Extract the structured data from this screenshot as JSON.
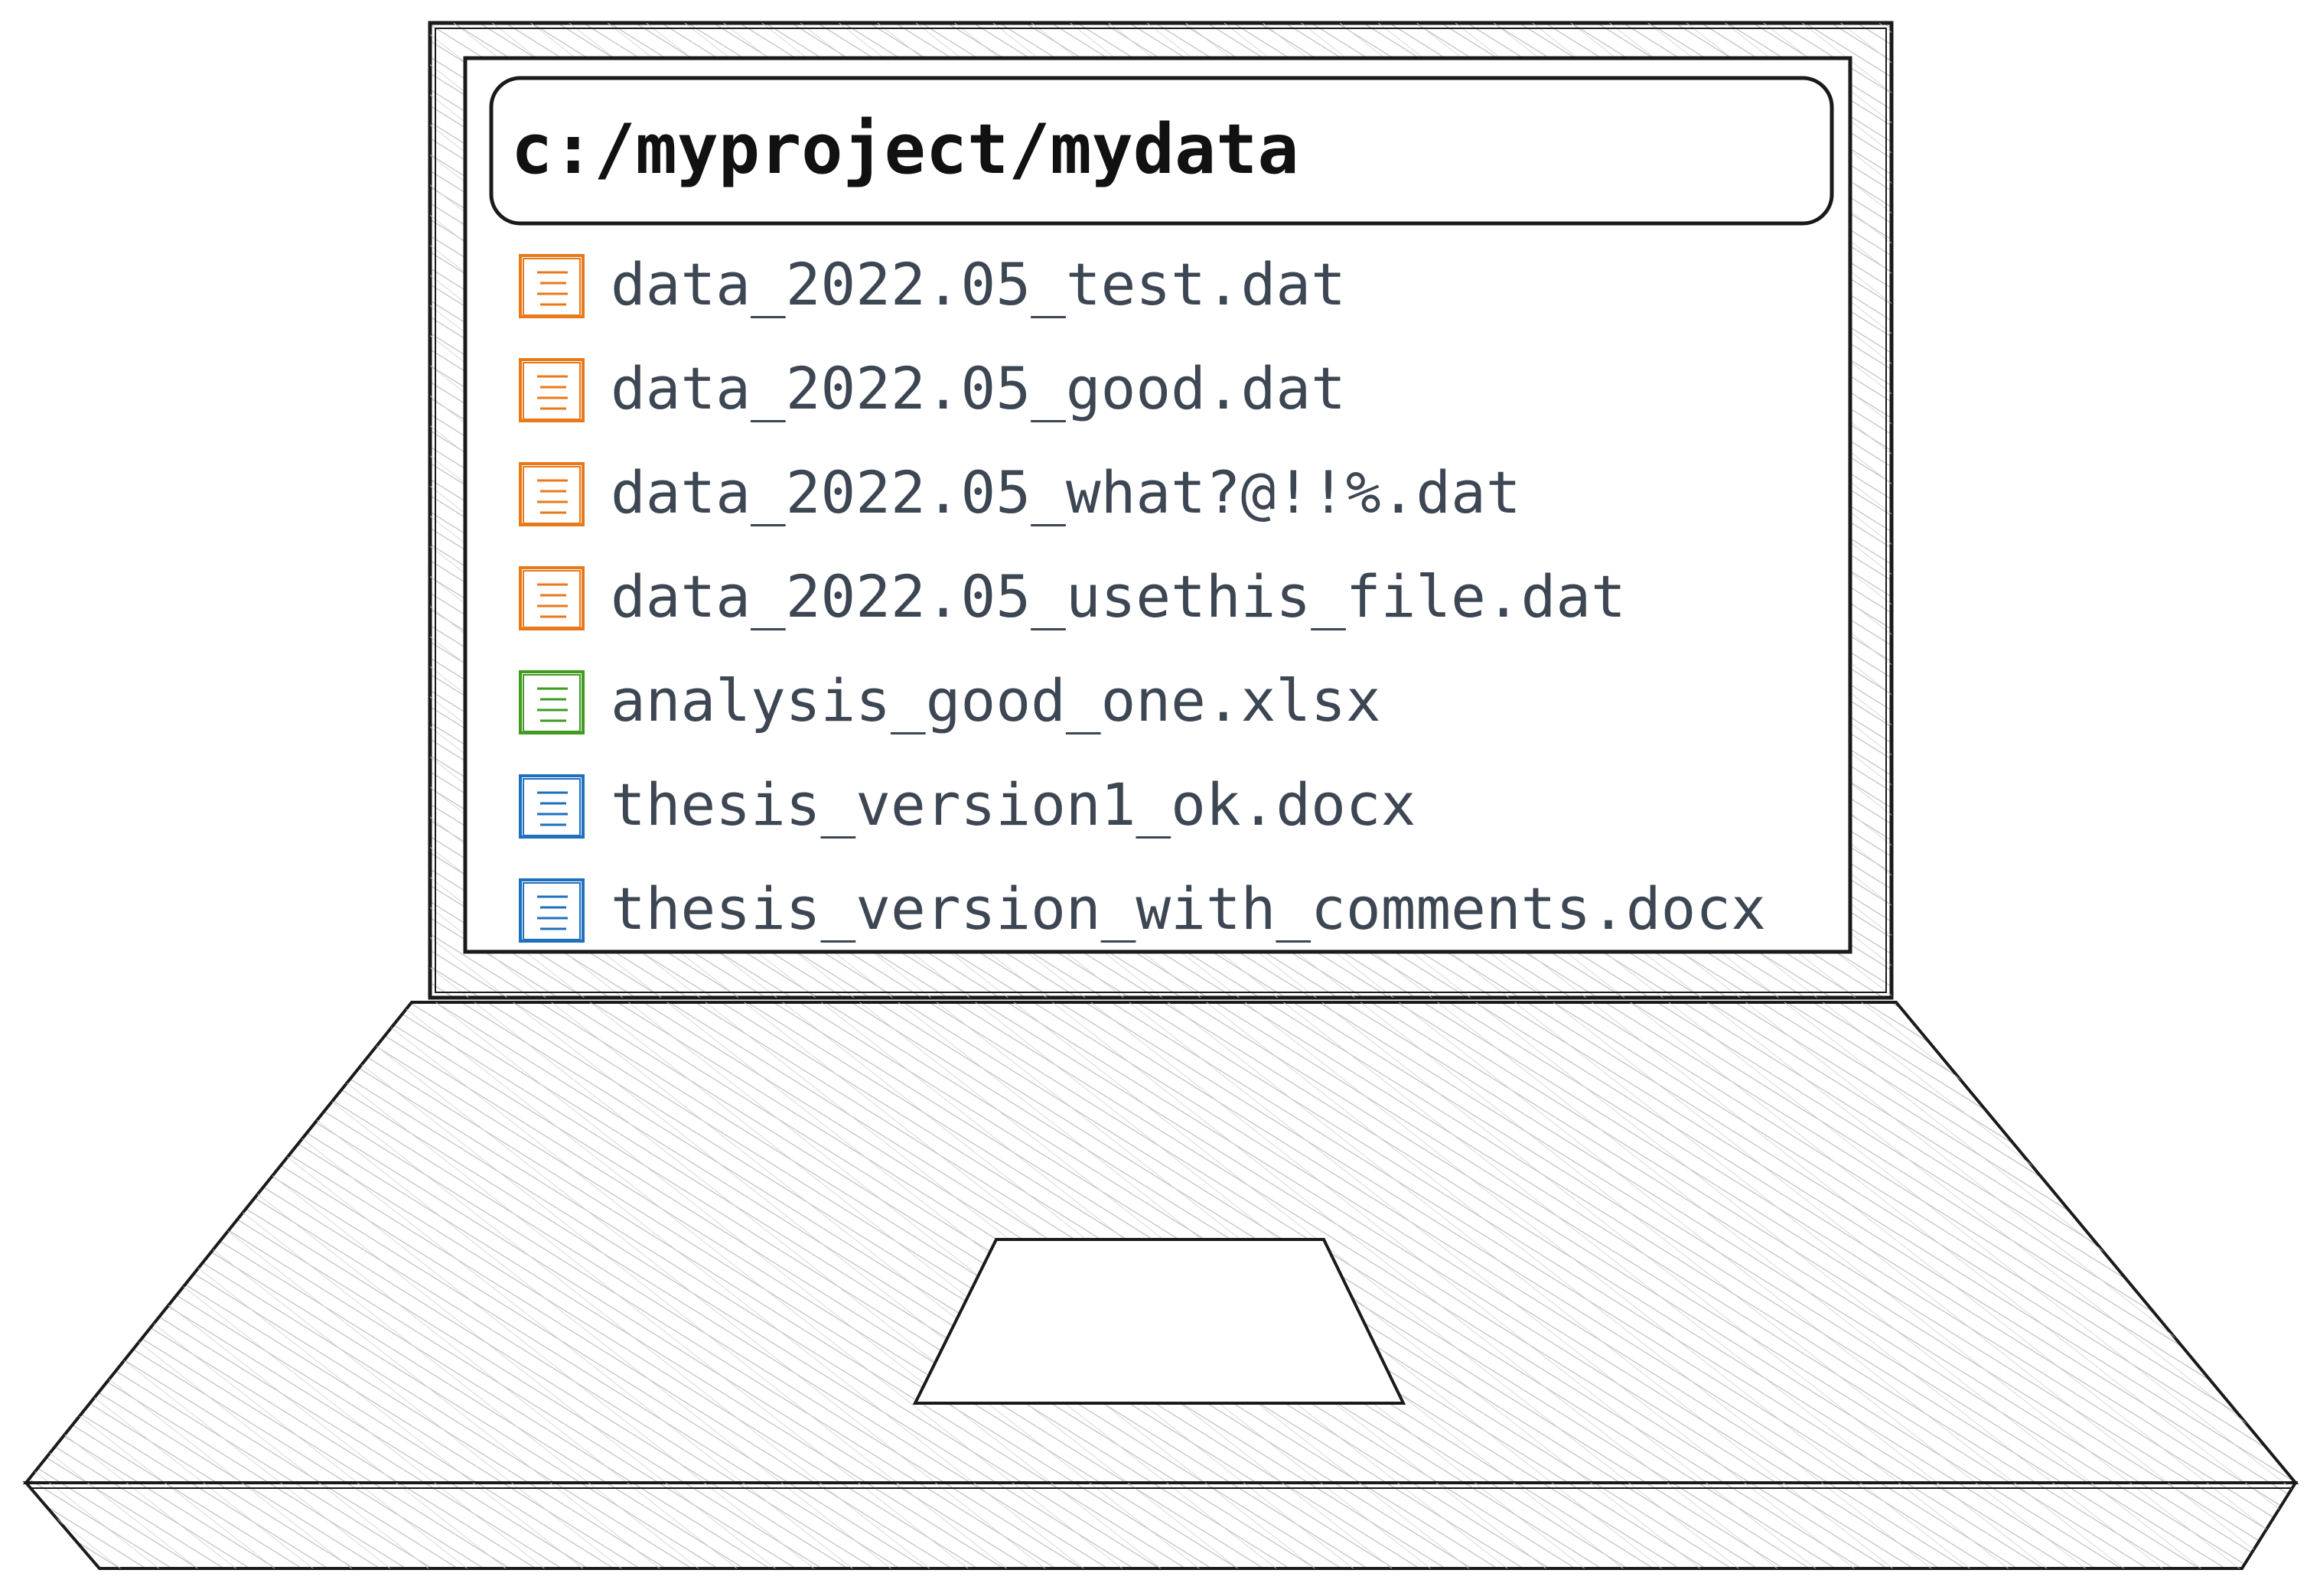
{
  "address_bar": {
    "path": "c:/myproject/mydata"
  },
  "files": [
    {
      "name": "data_2022.05_test.dat",
      "icon": "dat-file-icon",
      "color": "#e8791a"
    },
    {
      "name": "data_2022.05_good.dat",
      "icon": "dat-file-icon",
      "color": "#e8791a"
    },
    {
      "name": "data_2022.05_what?@!!%.dat",
      "icon": "dat-file-icon",
      "color": "#e8791a"
    },
    {
      "name": "data_2022.05_usethis_file.dat",
      "icon": "dat-file-icon",
      "color": "#e8791a"
    },
    {
      "name": "analysis_good_one.xlsx",
      "icon": "spreadsheet-file-icon",
      "color": "#3f9a1f"
    },
    {
      "name": "thesis_version1_ok.docx",
      "icon": "document-file-icon",
      "color": "#1f6fbf"
    },
    {
      "name": "thesis_version_with_comments.docx",
      "icon": "document-file-icon",
      "color": "#1f6fbf"
    }
  ],
  "colors": {
    "outline": "#1a1a1a",
    "hatch": "#b9b9b9",
    "file_text": "#3d4653"
  }
}
